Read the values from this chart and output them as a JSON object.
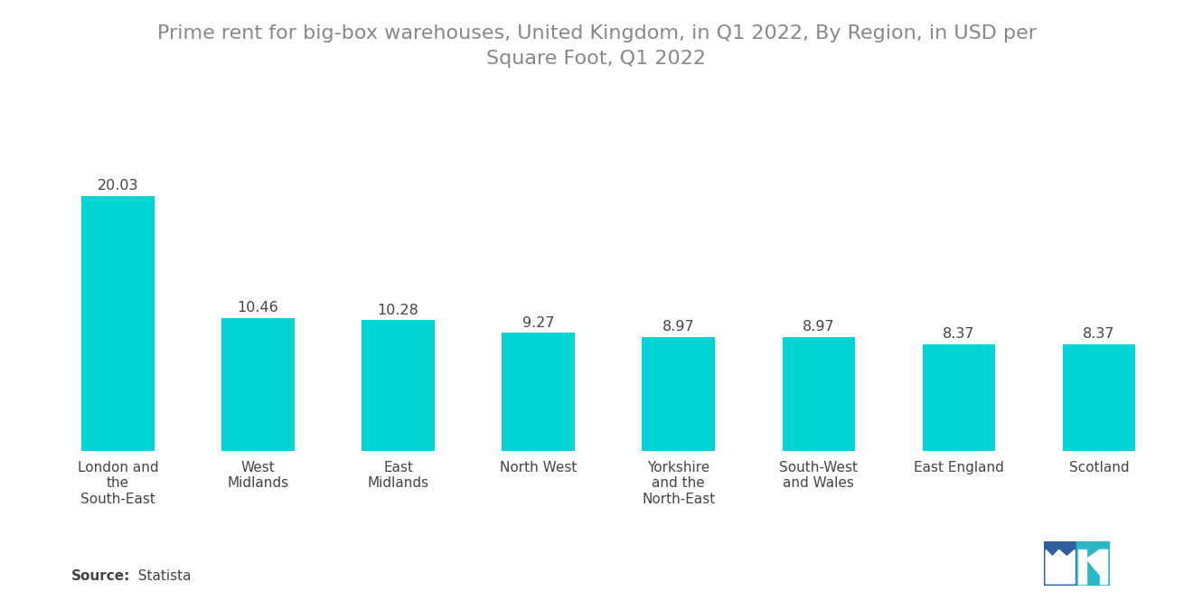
{
  "title": "Prime rent for big-box warehouses, United Kingdom, in Q1 2022, By Region, in USD per\nSquare Foot, Q1 2022",
  "categories": [
    "London and\nthe\nSouth-East",
    "West\nMidlands",
    "East\nMidlands",
    "North West",
    "Yorkshire\nand the\nNorth-East",
    "South-West\nand Wales",
    "East England",
    "Scotland"
  ],
  "values": [
    20.03,
    10.46,
    10.28,
    9.27,
    8.97,
    8.97,
    8.37,
    8.37
  ],
  "bar_color": "#00D4D4",
  "title_color": "#888888",
  "label_color": "#444444",
  "value_color": "#444444",
  "source_bold": "Source:",
  "source_rest": "  Statista",
  "ylim": [
    0,
    26
  ],
  "title_fontsize": 16,
  "label_fontsize": 11,
  "value_fontsize": 11.5,
  "source_fontsize": 11,
  "background_color": "#ffffff",
  "logo_left_color": "#2f5f9e",
  "logo_right_color": "#2ab8c5"
}
